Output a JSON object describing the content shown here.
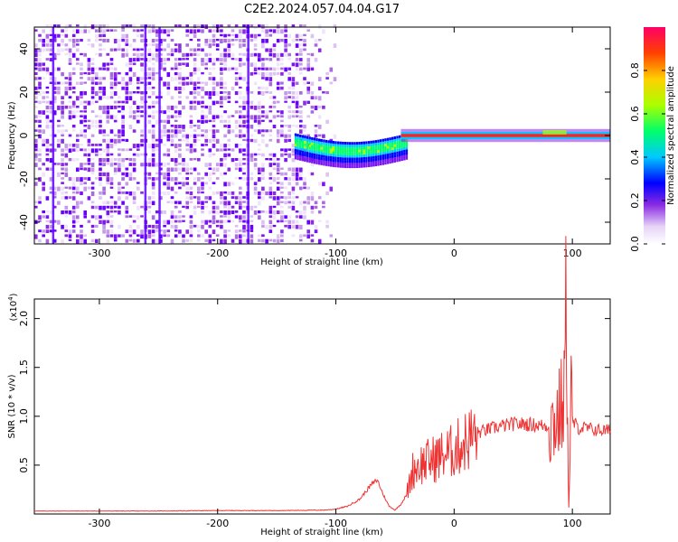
{
  "title": "C2E2.2024.057.04.04.G17",
  "chart_data": [
    {
      "type": "heatmap",
      "xlabel": "Height of straight line (km)",
      "ylabel": "Frequency (Hz)",
      "xlim": [
        -355,
        132
      ],
      "ylim": [
        -50,
        50
      ],
      "xticks": [
        -300,
        -200,
        -100,
        0,
        100
      ],
      "yticks": [
        -40,
        -20,
        0,
        20,
        40
      ],
      "colorbar": {
        "label": "Normalized spectral amplitude",
        "range": [
          0,
          1
        ],
        "ticks": [
          "0.0",
          "0.2",
          "0.4",
          "0.6",
          "0.8"
        ],
        "colors": [
          "#ffffff",
          "#e6d4f7",
          "#8a2be2",
          "#6a00ff",
          "#0000ff",
          "#00c8ff",
          "#00ff6a",
          "#aaff00",
          "#ffd000",
          "#ff4000",
          "#ff0066"
        ]
      },
      "features": {
        "noise_region_x": [
          -355,
          -100
        ],
        "transition_region_x": [
          -135,
          -40
        ],
        "carrier_line_x": [
          -45,
          132
        ],
        "carrier_freq_hz": 0,
        "vertical_streaks_x": [
          -340,
          -262,
          -250,
          -175
        ]
      }
    },
    {
      "type": "line",
      "xlabel": "Height of straight line (km)",
      "ylabel": "SNR (10 * v/v)",
      "y_multiplier": "(x10",
      "y_multiplier_exp": "4",
      "xlim": [
        -355,
        132
      ],
      "ylim": [
        0,
        2.2
      ],
      "xticks": [
        -300,
        -200,
        -100,
        0,
        100
      ],
      "yticks": [
        0.5,
        1.0,
        1.5,
        2.0
      ],
      "color": "#ee3333",
      "series": [
        {
          "x": [
            -355,
            -300,
            -250,
            -200,
            -150,
            -110,
            -100,
            -90,
            -80,
            -70,
            -65,
            -60,
            -55,
            -50,
            -45,
            -40,
            -35,
            -30,
            -20,
            -10,
            0,
            10,
            20,
            30,
            40,
            50,
            60,
            70,
            80,
            85,
            90,
            93,
            95,
            97,
            99,
            100,
            105,
            110,
            120,
            132
          ],
          "y": [
            0.03,
            0.03,
            0.03,
            0.035,
            0.035,
            0.04,
            0.05,
            0.08,
            0.15,
            0.3,
            0.35,
            0.2,
            0.08,
            0.04,
            0.1,
            0.2,
            0.45,
            0.5,
            0.55,
            0.6,
            0.65,
            0.75,
            0.83,
            0.87,
            0.9,
            0.92,
            0.92,
            0.91,
            0.9,
            0.95,
            1.05,
            1.2,
            2.2,
            0.05,
            1.3,
            0.95,
            0.88,
            0.88,
            0.86,
            0.85
          ]
        }
      ]
    }
  ]
}
